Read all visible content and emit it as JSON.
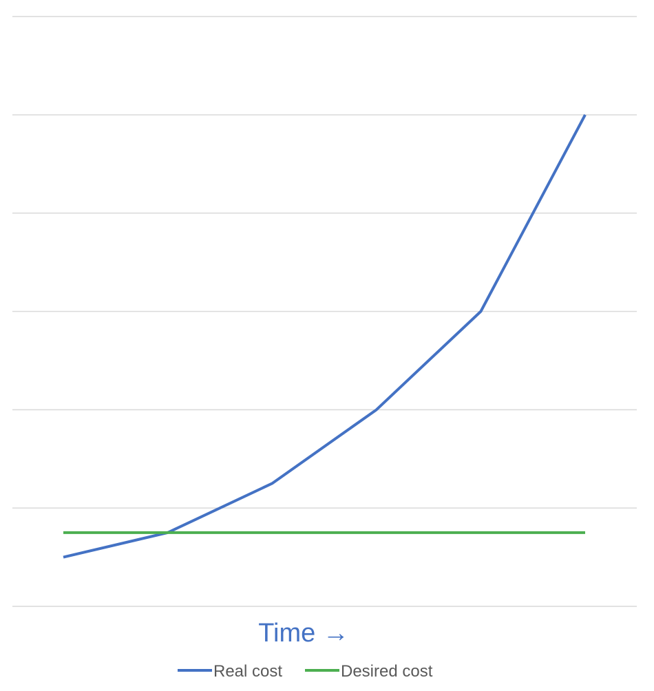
{
  "chart_data": {
    "type": "line",
    "title": "",
    "xlabel": "Time →",
    "ylabel": "",
    "x": [
      1,
      2,
      3,
      4,
      5,
      6
    ],
    "ylim": [
      0,
      6
    ],
    "y_gridlines": [
      0,
      1,
      2,
      3,
      4,
      5,
      6
    ],
    "grid": true,
    "legend": "bottom",
    "series": [
      {
        "name": "Real cost",
        "color": "#4472c4",
        "values": [
          0.5,
          0.75,
          1.25,
          2.0,
          3.0,
          5.0
        ]
      },
      {
        "name": "Desired cost",
        "color": "#4caf50",
        "values": [
          0.75,
          0.75,
          0.75,
          0.75,
          0.75,
          0.75
        ]
      }
    ],
    "xlabel_color": "#4472c4"
  }
}
